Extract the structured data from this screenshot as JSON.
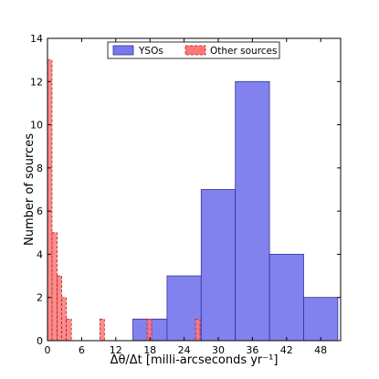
{
  "chart_data": {
    "type": "bar",
    "xlabel": "Δθ/Δt [milli-arcseconds yr⁻¹]",
    "ylabel": "Number of sources",
    "xlim": [
      0,
      51.5
    ],
    "ylim": [
      0,
      14
    ],
    "xticks": [
      0,
      6,
      12,
      18,
      24,
      30,
      36,
      42,
      48
    ],
    "yticks": [
      0,
      2,
      4,
      6,
      8,
      10,
      12,
      14
    ],
    "legend_position": "top-center",
    "series": [
      {
        "name": "YSOs",
        "color": "#7777ee",
        "bins": [
          {
            "x0": 15.0,
            "x1": 21.0,
            "count": 1
          },
          {
            "x0": 21.0,
            "x1": 27.0,
            "count": 3
          },
          {
            "x0": 27.0,
            "x1": 33.0,
            "count": 7
          },
          {
            "x0": 33.0,
            "x1": 39.0,
            "count": 12
          },
          {
            "x0": 39.0,
            "x1": 45.0,
            "count": 4
          },
          {
            "x0": 45.0,
            "x1": 51.0,
            "count": 2
          }
        ]
      },
      {
        "name": "Other sources",
        "color": "#ff7777",
        "bins": [
          {
            "x0": 0.0,
            "x1": 0.8,
            "count": 13
          },
          {
            "x0": 0.8,
            "x1": 1.7,
            "count": 5
          },
          {
            "x0": 1.7,
            "x1": 2.5,
            "count": 3
          },
          {
            "x0": 2.5,
            "x1": 3.3,
            "count": 2
          },
          {
            "x0": 3.3,
            "x1": 4.2,
            "count": 1
          },
          {
            "x0": 9.2,
            "x1": 10.0,
            "count": 1
          },
          {
            "x0": 17.5,
            "x1": 18.3,
            "count": 1
          },
          {
            "x0": 26.0,
            "x1": 26.8,
            "count": 1
          }
        ]
      }
    ]
  }
}
